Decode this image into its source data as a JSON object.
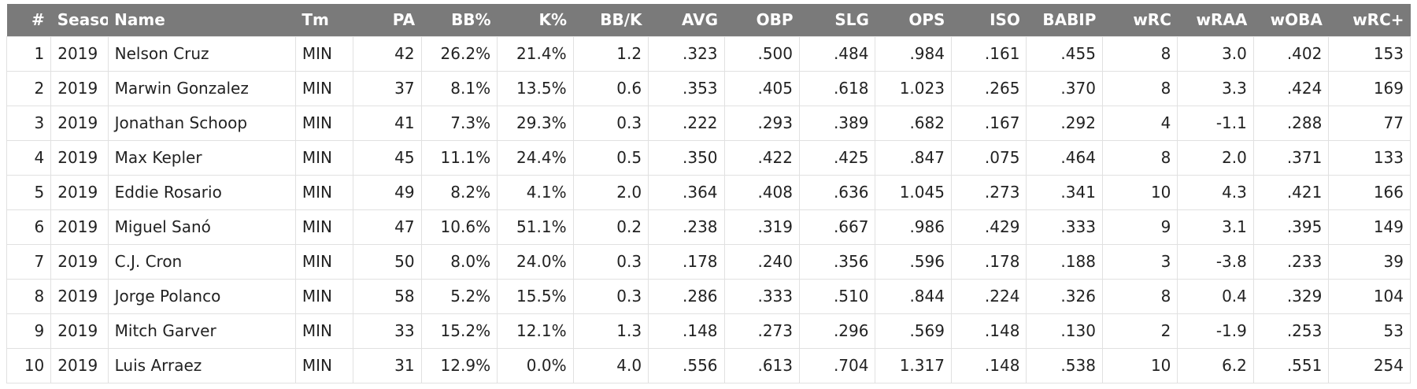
{
  "columns": [
    {
      "key": "num",
      "label": "#",
      "align": "right"
    },
    {
      "key": "season",
      "label": "Season",
      "align": "left"
    },
    {
      "key": "name",
      "label": "Name",
      "align": "left"
    },
    {
      "key": "tm",
      "label": "Tm",
      "align": "left"
    },
    {
      "key": "pa",
      "label": "PA",
      "align": "right"
    },
    {
      "key": "bb_pct",
      "label": "BB%",
      "align": "right"
    },
    {
      "key": "k_pct",
      "label": "K%",
      "align": "right"
    },
    {
      "key": "bb_k",
      "label": "BB/K",
      "align": "right"
    },
    {
      "key": "avg",
      "label": "AVG",
      "align": "right"
    },
    {
      "key": "obp",
      "label": "OBP",
      "align": "right"
    },
    {
      "key": "slg",
      "label": "SLG",
      "align": "right"
    },
    {
      "key": "ops",
      "label": "OPS",
      "align": "right"
    },
    {
      "key": "iso",
      "label": "ISO",
      "align": "right"
    },
    {
      "key": "babip",
      "label": "BABIP",
      "align": "right"
    },
    {
      "key": "wrc",
      "label": "wRC",
      "align": "right"
    },
    {
      "key": "wraa",
      "label": "wRAA",
      "align": "right"
    },
    {
      "key": "woba",
      "label": "wOBA",
      "align": "right"
    },
    {
      "key": "wrc_plus",
      "label": "wRC+",
      "align": "right"
    }
  ],
  "rows": [
    [
      "1",
      "2019",
      "Nelson Cruz",
      "MIN",
      "42",
      "26.2%",
      "21.4%",
      "1.2",
      ".323",
      ".500",
      ".484",
      ".984",
      ".161",
      ".455",
      "8",
      "3.0",
      ".402",
      "153"
    ],
    [
      "2",
      "2019",
      "Marwin Gonzalez",
      "MIN",
      "37",
      "8.1%",
      "13.5%",
      "0.6",
      ".353",
      ".405",
      ".618",
      "1.023",
      ".265",
      ".370",
      "8",
      "3.3",
      ".424",
      "169"
    ],
    [
      "3",
      "2019",
      "Jonathan Schoop",
      "MIN",
      "41",
      "7.3%",
      "29.3%",
      "0.3",
      ".222",
      ".293",
      ".389",
      ".682",
      ".167",
      ".292",
      "4",
      "-1.1",
      ".288",
      "77"
    ],
    [
      "4",
      "2019",
      "Max Kepler",
      "MIN",
      "45",
      "11.1%",
      "24.4%",
      "0.5",
      ".350",
      ".422",
      ".425",
      ".847",
      ".075",
      ".464",
      "8",
      "2.0",
      ".371",
      "133"
    ],
    [
      "5",
      "2019",
      "Eddie Rosario",
      "MIN",
      "49",
      "8.2%",
      "4.1%",
      "2.0",
      ".364",
      ".408",
      ".636",
      "1.045",
      ".273",
      ".341",
      "10",
      "4.3",
      ".421",
      "166"
    ],
    [
      "6",
      "2019",
      "Miguel Sanó",
      "MIN",
      "47",
      "10.6%",
      "51.1%",
      "0.2",
      ".238",
      ".319",
      ".667",
      ".986",
      ".429",
      ".333",
      "9",
      "3.1",
      ".395",
      "149"
    ],
    [
      "7",
      "2019",
      "C.J. Cron",
      "MIN",
      "50",
      "8.0%",
      "24.0%",
      "0.3",
      ".178",
      ".240",
      ".356",
      ".596",
      ".178",
      ".188",
      "3",
      "-3.8",
      ".233",
      "39"
    ],
    [
      "8",
      "2019",
      "Jorge Polanco",
      "MIN",
      "58",
      "5.2%",
      "15.5%",
      "0.3",
      ".286",
      ".333",
      ".510",
      ".844",
      ".224",
      ".326",
      "8",
      "0.4",
      ".329",
      "104"
    ],
    [
      "9",
      "2019",
      "Mitch Garver",
      "MIN",
      "33",
      "15.2%",
      "12.1%",
      "1.3",
      ".148",
      ".273",
      ".296",
      ".569",
      ".148",
      ".130",
      "2",
      "-1.9",
      ".253",
      "53"
    ],
    [
      "10",
      "2019",
      "Luis Arraez",
      "MIN",
      "31",
      "12.9%",
      "0.0%",
      "4.0",
      ".556",
      ".613",
      ".704",
      "1.317",
      ".148",
      ".538",
      "10",
      "6.2",
      ".551",
      "254"
    ]
  ]
}
